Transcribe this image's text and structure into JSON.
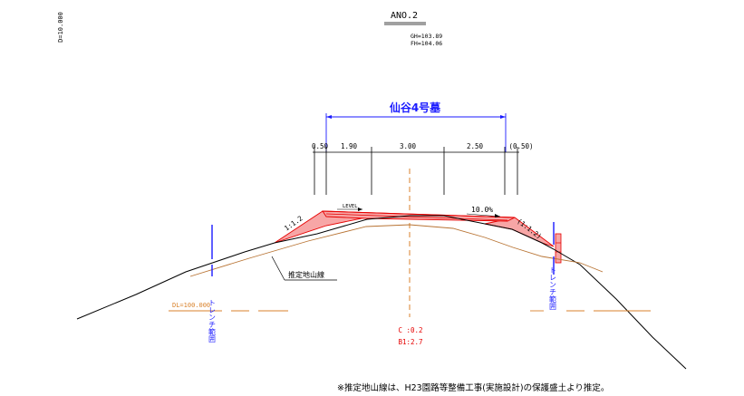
{
  "header": {
    "scale_label": "D=10.000",
    "station_label": "ANO.2",
    "ground_height": "GH=103.89",
    "formation_height": "FH=104.06"
  },
  "tomb": {
    "title": "仙谷4号墓",
    "widths": [
      "0.50",
      "1.90",
      "3.00",
      "2.50",
      "(0.50)"
    ]
  },
  "slopes": {
    "left_slope": "1:1.2",
    "right_slope": "(1:1.2)",
    "level": "LEVEL",
    "grade": "10.0%"
  },
  "labels": {
    "estimated_ground_line": "推定地山線",
    "datum_level": "DL=100.000",
    "trench_left": "トレンチ範囲",
    "trench_right": "トレンチ範囲",
    "cut_area": "C :0.2",
    "fill_area": "B1:2.7"
  },
  "footnote": "※推定地山線は、H23園路等整備工事(実施設計)の保護盛土より推定。",
  "colors": {
    "blue": "#1a1aff",
    "red": "#e60000",
    "orange": "#d9822b",
    "brown": "#b87333",
    "fill_pink": "#f7a6a6",
    "black": "#000000"
  }
}
